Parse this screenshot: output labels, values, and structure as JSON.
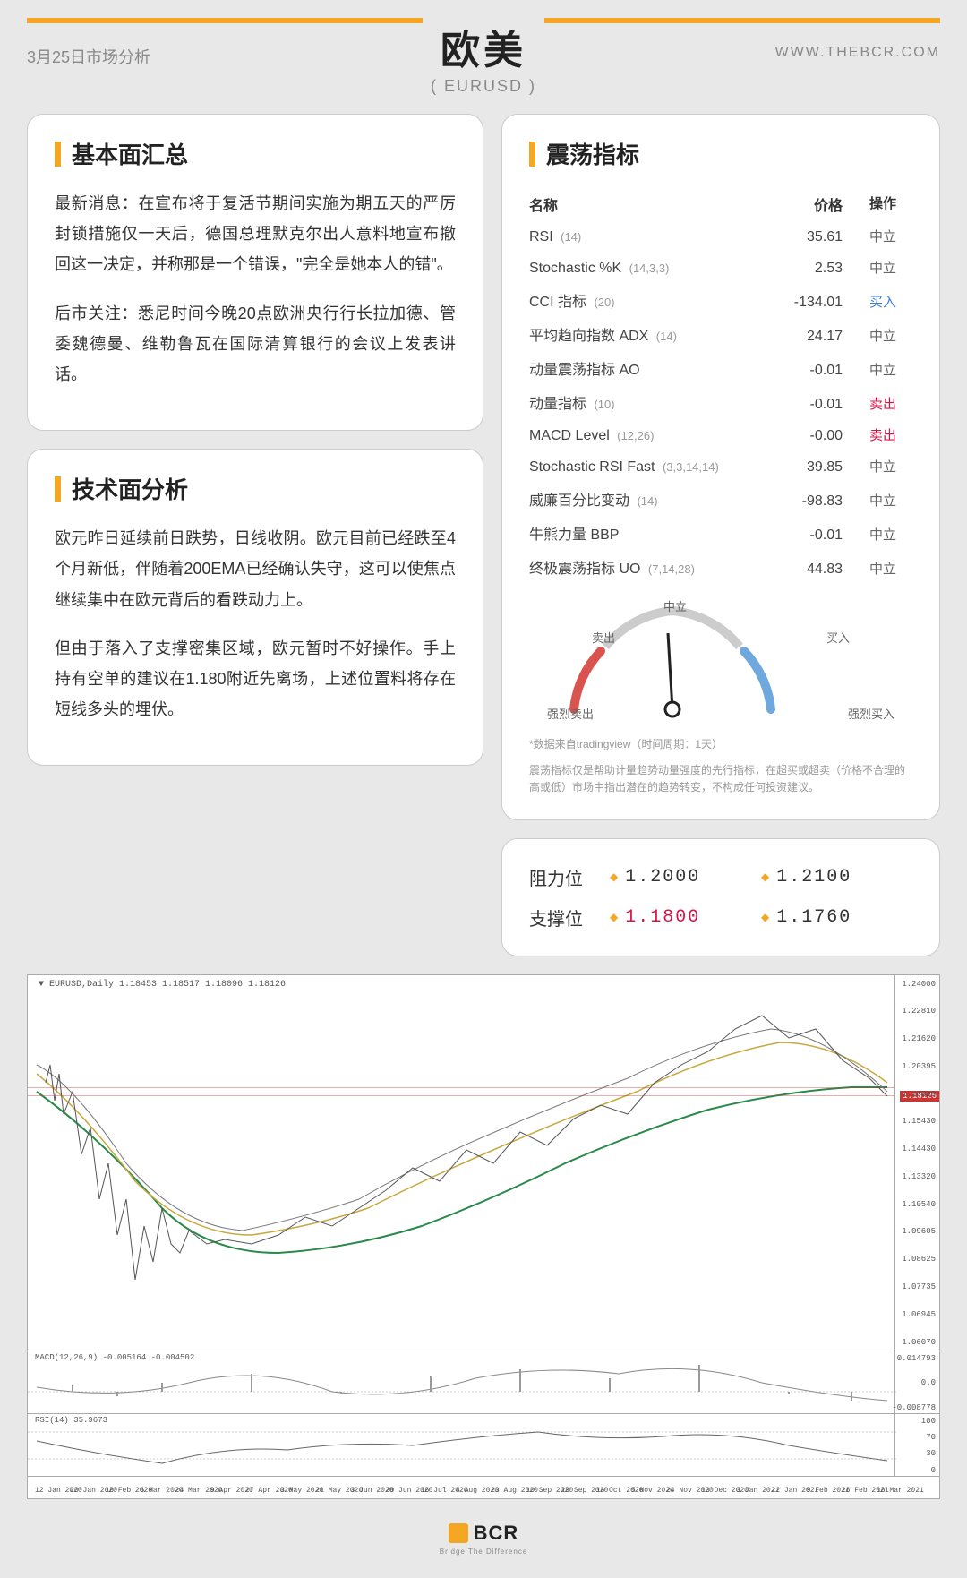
{
  "header": {
    "date_label": "3月25日市场分析",
    "title": "欧美",
    "subtitle": "( EURUSD )",
    "url": "WWW.THEBCR.COM"
  },
  "fundamentals": {
    "title": "基本面汇总",
    "p1": "最新消息：在宣布将于复活节期间实施为期五天的严厉封锁措施仅一天后，德国总理默克尔出人意料地宣布撤回这一决定，并称那是一个错误，\"完全是她本人的错\"。",
    "p2": "后市关注：悉尼时间今晚20点欧洲央行行长拉加德、管委魏德曼、维勒鲁瓦在国际清算银行的会议上发表讲话。"
  },
  "technical": {
    "title": "技术面分析",
    "p1": "欧元昨日延续前日跌势，日线收阴。欧元目前已经跌至4个月新低，伴随着200EMA已经确认失守，这可以使焦点继续集中在欧元背后的看跌动力上。",
    "p2": "但由于落入了支撑密集区域，欧元暂时不好操作。手上持有空单的建议在1.180附近先离场，上述位置料将存在短线多头的埋伏。"
  },
  "oscillators": {
    "title": "震荡指标",
    "col_name": "名称",
    "col_price": "价格",
    "col_action": "操作",
    "rows": [
      {
        "name": "RSI",
        "param": "(14)",
        "value": "35.61",
        "action": "中立",
        "cls": "neutral"
      },
      {
        "name": "Stochastic %K",
        "param": "(14,3,3)",
        "value": "2.53",
        "action": "中立",
        "cls": "neutral"
      },
      {
        "name": "CCI 指标",
        "param": "(20)",
        "value": "-134.01",
        "action": "买入",
        "cls": "buy"
      },
      {
        "name": "平均趋向指数 ADX",
        "param": "(14)",
        "value": "24.17",
        "action": "中立",
        "cls": "neutral"
      },
      {
        "name": "动量震荡指标 AO",
        "param": "",
        "value": "-0.01",
        "action": "中立",
        "cls": "neutral"
      },
      {
        "name": "动量指标",
        "param": "(10)",
        "value": "-0.01",
        "action": "卖出",
        "cls": "sell"
      },
      {
        "name": "MACD Level",
        "param": "(12,26)",
        "value": "-0.00",
        "action": "卖出",
        "cls": "sell"
      },
      {
        "name": "Stochastic RSI Fast",
        "param": "(3,3,14,14)",
        "value": "39.85",
        "action": "中立",
        "cls": "neutral"
      },
      {
        "name": "威廉百分比变动",
        "param": "(14)",
        "value": "-98.83",
        "action": "中立",
        "cls": "neutral"
      },
      {
        "name": "牛熊力量 BBP",
        "param": "",
        "value": "-0.01",
        "action": "中立",
        "cls": "neutral"
      },
      {
        "name": "终极震荡指标 UO",
        "param": "(7,14,28)",
        "value": "44.83",
        "action": "中立",
        "cls": "neutral"
      }
    ],
    "gauge": {
      "strong_sell": "强烈卖出",
      "sell": "卖出",
      "neutral": "中立",
      "buy": "买入",
      "strong_buy": "强烈买入",
      "needle_angle": -5,
      "sell_color": "#d9544f",
      "buy_color": "#6fa8dc",
      "neutral_color": "#cccccc"
    },
    "note1": "*数据来自tradingview（时间周期：1天）",
    "note2": "震荡指标仅是帮助计量趋势动量强度的先行指标，在超买或超卖（价格不合理的高或低）市场中指出潜在的趋势转变，不构成任何投资建议。"
  },
  "levels": {
    "resistance_label": "阻力位",
    "support_label": "支撑位",
    "r1": "1.2000",
    "r2": "1.2100",
    "s1": "1.1800",
    "s2": "1.1760",
    "s1_highlight": true
  },
  "chart": {
    "info": "▼ EURUSD,Daily 1.18453 1.18517 1.18096 1.18126",
    "yaxis": [
      "1.24000",
      "1.22810",
      "1.21620",
      "1.20395",
      "1.18825",
      "1.15430",
      "1.14430",
      "1.13320",
      "1.10540",
      "1.09605",
      "1.08625",
      "1.07735",
      "1.06945",
      "1.06070"
    ],
    "price_tag": "1.18126",
    "hline_top": 0.3,
    "hline_bot": 0.32,
    "macd_label": "MACD(12,26,9) -0.005164 -0.004502",
    "macd_yaxis": [
      "0.014793",
      "0.0",
      "-0.008778"
    ],
    "rsi_label": "RSI(14) 35.9673",
    "rsi_yaxis": [
      "100",
      "70",
      "30",
      "0"
    ],
    "xaxis": [
      "12 Jan 2020",
      "20 Jan 2020",
      "18 Feb 2020",
      "6 Mar 2020",
      "24 Mar 2020",
      "9 Apr 2020",
      "27 Apr 2020",
      "3 May 2020",
      "21 May 2020",
      "3 Jun 2020",
      "20 Jun 2020",
      "16 Jul 2020",
      "4 Aug 2020",
      "23 Aug 2020",
      "10 Sep 2020",
      "29 Sep 2020",
      "18 Oct 2020",
      "5 Nov 2020",
      "24 Nov 2020",
      "13 Dec 2020",
      "3 Jan 2021",
      "22 Jan 2021",
      "9 Feb 2021",
      "28 Feb 2021",
      "18 Mar 2021"
    ],
    "colors": {
      "candle_up": "#27a69a",
      "candle_down": "#d14545",
      "ema200": "#2a8a4a",
      "ma1": "#c9a83f",
      "ma2": "#7a7a7a"
    }
  },
  "footer": {
    "brand": "BCR",
    "tagline": "Bridge The Difference"
  }
}
